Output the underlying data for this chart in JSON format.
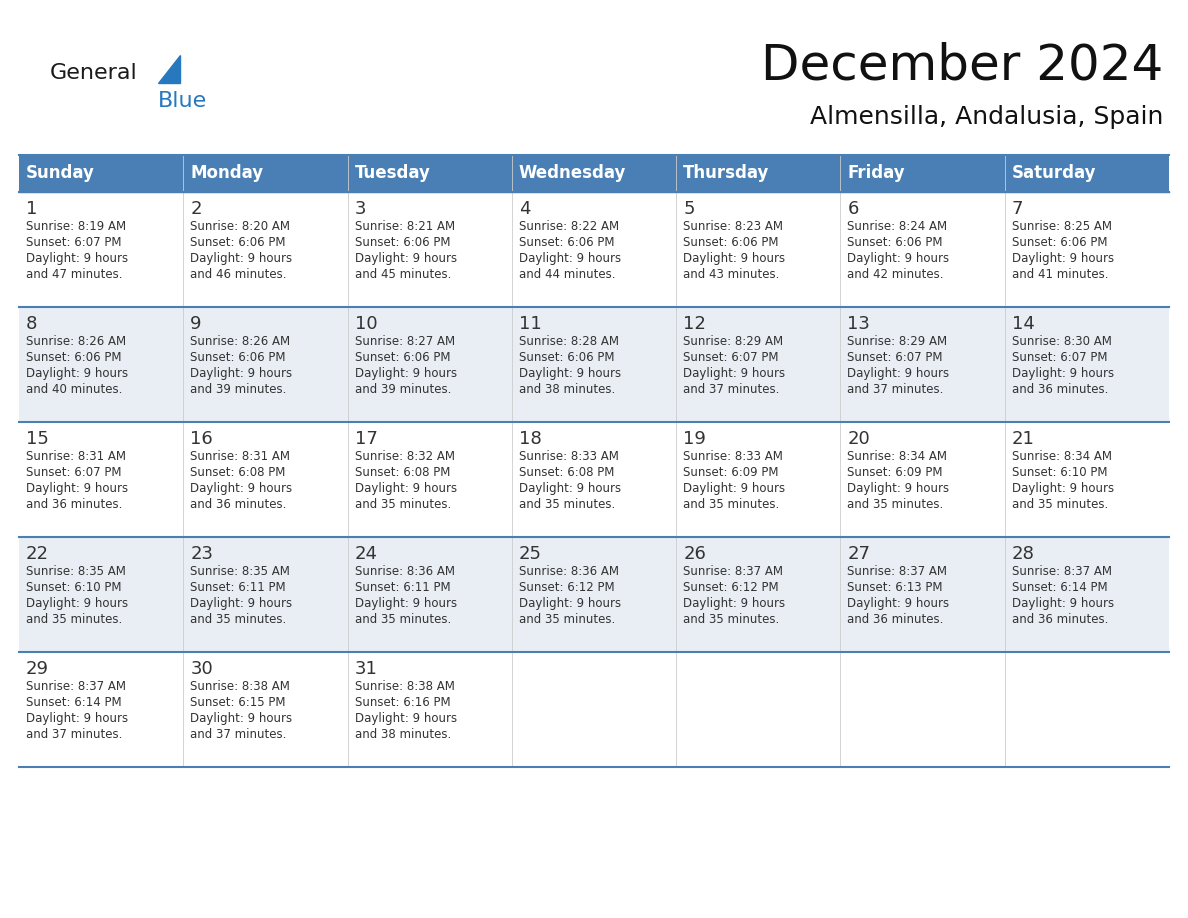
{
  "title": "December 2024",
  "subtitle": "Almensilla, Andalusia, Spain",
  "header_color": "#4a7fb5",
  "header_text_color": "#ffffff",
  "cell_bg_white": "#ffffff",
  "cell_bg_gray": "#e8eef4",
  "border_color": "#4a7fb5",
  "text_color": "#333333",
  "day_headers": [
    "Sunday",
    "Monday",
    "Tuesday",
    "Wednesday",
    "Thursday",
    "Friday",
    "Saturday"
  ],
  "weeks": [
    [
      {
        "day": "1",
        "sunrise": "8:19 AM",
        "sunset": "6:07 PM",
        "daylight_a": "9 hours",
        "daylight_b": "and 47 minutes."
      },
      {
        "day": "2",
        "sunrise": "8:20 AM",
        "sunset": "6:06 PM",
        "daylight_a": "9 hours",
        "daylight_b": "and 46 minutes."
      },
      {
        "day": "3",
        "sunrise": "8:21 AM",
        "sunset": "6:06 PM",
        "daylight_a": "9 hours",
        "daylight_b": "and 45 minutes."
      },
      {
        "day": "4",
        "sunrise": "8:22 AM",
        "sunset": "6:06 PM",
        "daylight_a": "9 hours",
        "daylight_b": "and 44 minutes."
      },
      {
        "day": "5",
        "sunrise": "8:23 AM",
        "sunset": "6:06 PM",
        "daylight_a": "9 hours",
        "daylight_b": "and 43 minutes."
      },
      {
        "day": "6",
        "sunrise": "8:24 AM",
        "sunset": "6:06 PM",
        "daylight_a": "9 hours",
        "daylight_b": "and 42 minutes."
      },
      {
        "day": "7",
        "sunrise": "8:25 AM",
        "sunset": "6:06 PM",
        "daylight_a": "9 hours",
        "daylight_b": "and 41 minutes."
      }
    ],
    [
      {
        "day": "8",
        "sunrise": "8:26 AM",
        "sunset": "6:06 PM",
        "daylight_a": "9 hours",
        "daylight_b": "and 40 minutes."
      },
      {
        "day": "9",
        "sunrise": "8:26 AM",
        "sunset": "6:06 PM",
        "daylight_a": "9 hours",
        "daylight_b": "and 39 minutes."
      },
      {
        "day": "10",
        "sunrise": "8:27 AM",
        "sunset": "6:06 PM",
        "daylight_a": "9 hours",
        "daylight_b": "and 39 minutes."
      },
      {
        "day": "11",
        "sunrise": "8:28 AM",
        "sunset": "6:06 PM",
        "daylight_a": "9 hours",
        "daylight_b": "and 38 minutes."
      },
      {
        "day": "12",
        "sunrise": "8:29 AM",
        "sunset": "6:07 PM",
        "daylight_a": "9 hours",
        "daylight_b": "and 37 minutes."
      },
      {
        "day": "13",
        "sunrise": "8:29 AM",
        "sunset": "6:07 PM",
        "daylight_a": "9 hours",
        "daylight_b": "and 37 minutes."
      },
      {
        "day": "14",
        "sunrise": "8:30 AM",
        "sunset": "6:07 PM",
        "daylight_a": "9 hours",
        "daylight_b": "and 36 minutes."
      }
    ],
    [
      {
        "day": "15",
        "sunrise": "8:31 AM",
        "sunset": "6:07 PM",
        "daylight_a": "9 hours",
        "daylight_b": "and 36 minutes."
      },
      {
        "day": "16",
        "sunrise": "8:31 AM",
        "sunset": "6:08 PM",
        "daylight_a": "9 hours",
        "daylight_b": "and 36 minutes."
      },
      {
        "day": "17",
        "sunrise": "8:32 AM",
        "sunset": "6:08 PM",
        "daylight_a": "9 hours",
        "daylight_b": "and 35 minutes."
      },
      {
        "day": "18",
        "sunrise": "8:33 AM",
        "sunset": "6:08 PM",
        "daylight_a": "9 hours",
        "daylight_b": "and 35 minutes."
      },
      {
        "day": "19",
        "sunrise": "8:33 AM",
        "sunset": "6:09 PM",
        "daylight_a": "9 hours",
        "daylight_b": "and 35 minutes."
      },
      {
        "day": "20",
        "sunrise": "8:34 AM",
        "sunset": "6:09 PM",
        "daylight_a": "9 hours",
        "daylight_b": "and 35 minutes."
      },
      {
        "day": "21",
        "sunrise": "8:34 AM",
        "sunset": "6:10 PM",
        "daylight_a": "9 hours",
        "daylight_b": "and 35 minutes."
      }
    ],
    [
      {
        "day": "22",
        "sunrise": "8:35 AM",
        "sunset": "6:10 PM",
        "daylight_a": "9 hours",
        "daylight_b": "and 35 minutes."
      },
      {
        "day": "23",
        "sunrise": "8:35 AM",
        "sunset": "6:11 PM",
        "daylight_a": "9 hours",
        "daylight_b": "and 35 minutes."
      },
      {
        "day": "24",
        "sunrise": "8:36 AM",
        "sunset": "6:11 PM",
        "daylight_a": "9 hours",
        "daylight_b": "and 35 minutes."
      },
      {
        "day": "25",
        "sunrise": "8:36 AM",
        "sunset": "6:12 PM",
        "daylight_a": "9 hours",
        "daylight_b": "and 35 minutes."
      },
      {
        "day": "26",
        "sunrise": "8:37 AM",
        "sunset": "6:12 PM",
        "daylight_a": "9 hours",
        "daylight_b": "and 35 minutes."
      },
      {
        "day": "27",
        "sunrise": "8:37 AM",
        "sunset": "6:13 PM",
        "daylight_a": "9 hours",
        "daylight_b": "and 36 minutes."
      },
      {
        "day": "28",
        "sunrise": "8:37 AM",
        "sunset": "6:14 PM",
        "daylight_a": "9 hours",
        "daylight_b": "and 36 minutes."
      }
    ],
    [
      {
        "day": "29",
        "sunrise": "8:37 AM",
        "sunset": "6:14 PM",
        "daylight_a": "9 hours",
        "daylight_b": "and 37 minutes."
      },
      {
        "day": "30",
        "sunrise": "8:38 AM",
        "sunset": "6:15 PM",
        "daylight_a": "9 hours",
        "daylight_b": "and 37 minutes."
      },
      {
        "day": "31",
        "sunrise": "8:38 AM",
        "sunset": "6:16 PM",
        "daylight_a": "9 hours",
        "daylight_b": "and 38 minutes."
      },
      null,
      null,
      null,
      null
    ]
  ],
  "logo_general_color": "#1a1a1a",
  "logo_blue_color": "#2878c0",
  "logo_triangle_color": "#2878c0",
  "fig_width": 11.88,
  "fig_height": 9.18,
  "dpi": 100
}
